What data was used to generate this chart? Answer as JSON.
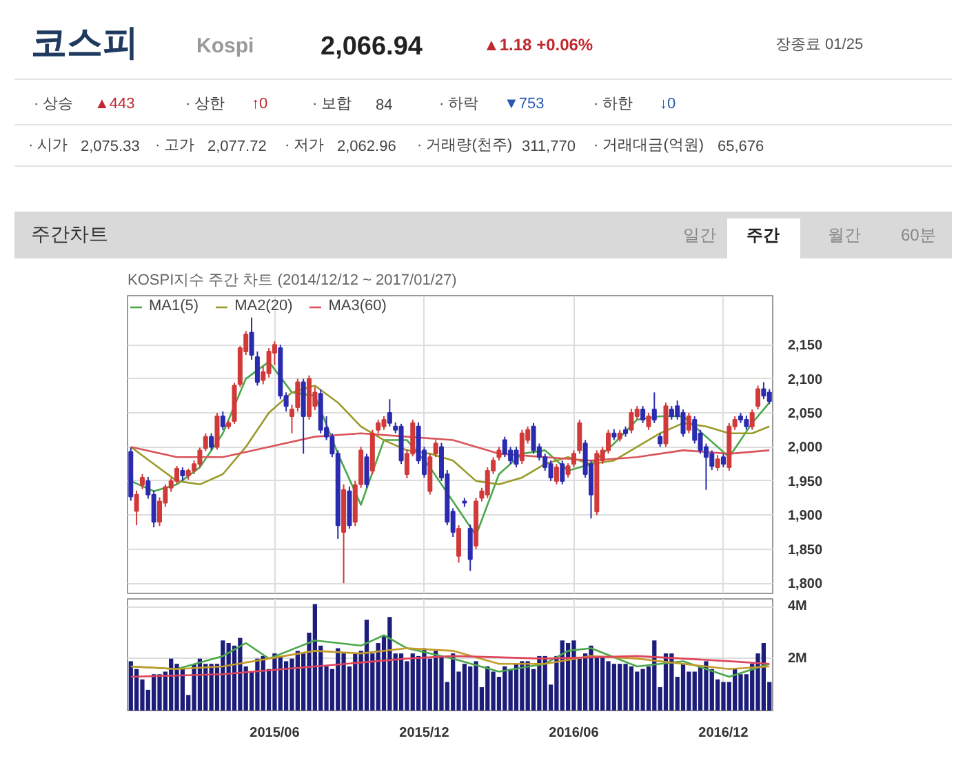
{
  "chart_data": [
    {
      "type": "other",
      "title": "코스피",
      "subtitle": "Kospi",
      "annotations": [
        "2,066.94",
        "▲1.18 +0.06%",
        "장종료 01/25",
        "· 상승",
        "▲443",
        "· 상한",
        "↑0",
        "· 보합",
        "84",
        "· 하락",
        "▼753",
        "· 하한",
        "↓0",
        "· 시가",
        "2,075.33",
        "· 고가",
        "2,077.72",
        "· 저가",
        "2,062.96",
        "· 거래량(천주)",
        "311,770",
        "· 거래대금(억원)",
        "65,676",
        "주간차트",
        "일간",
        "주간",
        "월간",
        "60분"
      ]
    },
    {
      "type": "candlestick",
      "title": "KOSPI지수 주간 차트 (2014/12/12 ~ 2017/01/27)",
      "tick_labels": "y",
      "grid": true,
      "legend": "top left",
      "xlim": [
        "2014-12-08",
        "2017-01-31"
      ],
      "xticks": [
        {
          "value": "2015-06-05",
          "label": null
        },
        {
          "value": "2015-12-04",
          "label": null
        },
        {
          "value": "2016-06-03",
          "label": null
        },
        {
          "value": "2016-12-02",
          "label": null
        }
      ],
      "ylim": [
        1785,
        2222
      ],
      "yticks": [
        {
          "value": 1800,
          "label": "1,800"
        },
        {
          "value": 1850,
          "label": "1,850"
        },
        {
          "value": 1900,
          "label": "1,900"
        },
        {
          "value": 1950,
          "label": "1,950"
        },
        {
          "value": 2000,
          "label": "2,000"
        },
        {
          "value": 2050,
          "label": "2,050"
        },
        {
          "value": 2100,
          "label": "2,100"
        },
        {
          "value": 2150,
          "label": "2,150"
        }
      ],
      "x": [
        "2014-12-12",
        "2014-12-19",
        "2014-12-26",
        "2015-01-02",
        "2015-01-09",
        "2015-01-16",
        "2015-01-23",
        "2015-01-30",
        "2015-02-06",
        "2015-02-13",
        "2015-02-20",
        "2015-02-27",
        "2015-03-06",
        "2015-03-13",
        "2015-03-20",
        "2015-03-27",
        "2015-04-03",
        "2015-04-10",
        "2015-04-17",
        "2015-04-24",
        "2015-05-01",
        "2015-05-08",
        "2015-05-15",
        "2015-05-22",
        "2015-05-29",
        "2015-06-05",
        "2015-06-12",
        "2015-06-19",
        "2015-06-26",
        "2015-07-03",
        "2015-07-10",
        "2015-07-17",
        "2015-07-24",
        "2015-07-31",
        "2015-08-07",
        "2015-08-14",
        "2015-08-21",
        "2015-08-28",
        "2015-09-04",
        "2015-09-11",
        "2015-09-18",
        "2015-09-25",
        "2015-10-02",
        "2015-10-09",
        "2015-10-16",
        "2015-10-23",
        "2015-10-30",
        "2015-11-06",
        "2015-11-13",
        "2015-11-20",
        "2015-11-27",
        "2015-12-04",
        "2015-12-11",
        "2015-12-18",
        "2015-12-25",
        "2016-01-01",
        "2016-01-08",
        "2016-01-15",
        "2016-01-22",
        "2016-01-29",
        "2016-02-05",
        "2016-02-12",
        "2016-02-19",
        "2016-02-26",
        "2016-03-04",
        "2016-03-11",
        "2016-03-18",
        "2016-03-25",
        "2016-04-01",
        "2016-04-08",
        "2016-04-15",
        "2016-04-22",
        "2016-04-29",
        "2016-05-06",
        "2016-05-13",
        "2016-05-20",
        "2016-05-27",
        "2016-06-03",
        "2016-06-10",
        "2016-06-17",
        "2016-06-24",
        "2016-07-01",
        "2016-07-08",
        "2016-07-15",
        "2016-07-22",
        "2016-07-29",
        "2016-08-05",
        "2016-08-12",
        "2016-08-19",
        "2016-08-26",
        "2016-09-02",
        "2016-09-09",
        "2016-09-16",
        "2016-09-23",
        "2016-09-30",
        "2016-10-07",
        "2016-10-14",
        "2016-10-21",
        "2016-10-28",
        "2016-11-04",
        "2016-11-11",
        "2016-11-18",
        "2016-11-25",
        "2016-12-02",
        "2016-12-09",
        "2016-12-16",
        "2016-12-23",
        "2016-12-30",
        "2017-01-06",
        "2017-01-13",
        "2017-01-20",
        "2017-01-27"
      ],
      "ohlc": [
        [
          1993,
          1999,
          1921,
          1927
        ],
        [
          1906,
          1936,
          1885,
          1930
        ],
        [
          1944,
          1960,
          1938,
          1955
        ],
        [
          1950,
          1956,
          1924,
          1930
        ],
        [
          1930,
          1936,
          1882,
          1890
        ],
        [
          1890,
          1926,
          1884,
          1920
        ],
        [
          1918,
          1945,
          1912,
          1941
        ],
        [
          1940,
          1954,
          1934,
          1950
        ],
        [
          1950,
          1972,
          1946,
          1968
        ],
        [
          1965,
          1970,
          1950,
          1958
        ],
        [
          1958,
          1968,
          1952,
          1965
        ],
        [
          1965,
          1980,
          1960,
          1975
        ],
        [
          1975,
          1999,
          1970,
          1995
        ],
        [
          1998,
          2020,
          1994,
          2015
        ],
        [
          2015,
          2020,
          1995,
          2000
        ],
        [
          2000,
          2050,
          1996,
          2045
        ],
        [
          2045,
          2052,
          2025,
          2030
        ],
        [
          2030,
          2038,
          2026,
          2035
        ],
        [
          2038,
          2094,
          2034,
          2090
        ],
        [
          2092,
          2148,
          2088,
          2145
        ],
        [
          2140,
          2170,
          2135,
          2165
        ],
        [
          2168,
          2190,
          2128,
          2135
        ],
        [
          2132,
          2140,
          2090,
          2095
        ],
        [
          2098,
          2118,
          2092,
          2110
        ],
        [
          2108,
          2145,
          2102,
          2140
        ],
        [
          2138,
          2155,
          2120,
          2150
        ],
        [
          2145,
          2150,
          2070,
          2075
        ],
        [
          2075,
          2080,
          2052,
          2060
        ],
        [
          2045,
          2062,
          2020,
          2055
        ],
        [
          2058,
          2100,
          2052,
          2095
        ],
        [
          2095,
          2100,
          1990,
          2045
        ],
        [
          2045,
          2105,
          2040,
          2100
        ],
        [
          2060,
          2088,
          2054,
          2080
        ],
        [
          2078,
          2084,
          2020,
          2025
        ],
        [
          2028,
          2045,
          2010,
          2015
        ],
        [
          2015,
          2020,
          1985,
          1990
        ],
        [
          1990,
          1995,
          1865,
          1885
        ],
        [
          1875,
          1945,
          1800,
          1937
        ],
        [
          1935,
          1942,
          1880,
          1885
        ],
        [
          1890,
          1950,
          1884,
          1944
        ],
        [
          1945,
          2000,
          1940,
          1995
        ],
        [
          1985,
          1990,
          1940,
          1945
        ],
        [
          1965,
          2025,
          1960,
          2020
        ],
        [
          2025,
          2040,
          2020,
          2035
        ],
        [
          2030,
          2045,
          2025,
          2040
        ],
        [
          2050,
          2070,
          2030,
          2035
        ],
        [
          2030,
          2036,
          2020,
          2025
        ],
        [
          2030,
          2034,
          1975,
          1980
        ],
        [
          1960,
          1996,
          1954,
          1990
        ],
        [
          1990,
          2040,
          1986,
          2035
        ],
        [
          2030,
          2036,
          1975,
          1980
        ],
        [
          1995,
          2000,
          1955,
          1960
        ],
        [
          1935,
          1990,
          1930,
          1985
        ],
        [
          1990,
          2010,
          1985,
          2005
        ],
        [
          2000,
          2006,
          1950,
          1955
        ],
        [
          1960,
          1966,
          1885,
          1890
        ],
        [
          1905,
          1910,
          1868,
          1875
        ],
        [
          1840,
          1885,
          1830,
          1880
        ],
        [
          1920,
          1925,
          1912,
          1918
        ],
        [
          1880,
          1886,
          1818,
          1835
        ],
        [
          1855,
          1925,
          1850,
          1920
        ],
        [
          1925,
          1940,
          1920,
          1935
        ],
        [
          1930,
          1970,
          1925,
          1965
        ],
        [
          1965,
          1985,
          1960,
          1980
        ],
        [
          1985,
          2000,
          1980,
          1995
        ],
        [
          2010,
          2015,
          1985,
          1990
        ],
        [
          1995,
          2000,
          1975,
          1980
        ],
        [
          1995,
          2000,
          1970,
          1975
        ],
        [
          1980,
          2025,
          1975,
          2020
        ],
        [
          2010,
          2030,
          2005,
          2025
        ],
        [
          2030,
          2035,
          1990,
          1995
        ],
        [
          2000,
          2005,
          1980,
          1985
        ],
        [
          1985,
          1990,
          1965,
          1970
        ],
        [
          1975,
          1980,
          1950,
          1955
        ],
        [
          1950,
          1975,
          1945,
          1970
        ],
        [
          1975,
          1980,
          1945,
          1950
        ],
        [
          1960,
          1976,
          1955,
          1972
        ],
        [
          1975,
          1995,
          1970,
          1990
        ],
        [
          1995,
          2040,
          1990,
          2035
        ],
        [
          2005,
          2010,
          1955,
          1960
        ],
        [
          1975,
          1980,
          1895,
          1930
        ],
        [
          1905,
          1995,
          1900,
          1990
        ],
        [
          1980,
          2000,
          1975,
          1995
        ],
        [
          1995,
          2025,
          1990,
          2020
        ],
        [
          2020,
          2026,
          2010,
          2015
        ],
        [
          2012,
          2025,
          2008,
          2020
        ],
        [
          2025,
          2030,
          2015,
          2020
        ],
        [
          2025,
          2056,
          2020,
          2050
        ],
        [
          2045,
          2060,
          2040,
          2055
        ],
        [
          2055,
          2060,
          2035,
          2040
        ],
        [
          2030,
          2050,
          2025,
          2045
        ],
        [
          2055,
          2080,
          2035,
          2040
        ],
        [
          2015,
          2020,
          2000,
          2005
        ],
        [
          2005,
          2065,
          2000,
          2060
        ],
        [
          2055,
          2060,
          2040,
          2045
        ],
        [
          2060,
          2068,
          2040,
          2045
        ],
        [
          2050,
          2055,
          2015,
          2020
        ],
        [
          2025,
          2050,
          2020,
          2045
        ],
        [
          2040,
          2045,
          2005,
          2010
        ],
        [
          2020,
          2025,
          1990,
          1995
        ],
        [
          2000,
          2005,
          1937,
          1985
        ],
        [
          1990,
          1995,
          1966,
          1972
        ],
        [
          1970,
          1988,
          1965,
          1982
        ],
        [
          1985,
          1990,
          1970,
          1975
        ],
        [
          1970,
          2035,
          1965,
          2030
        ],
        [
          2030,
          2045,
          2025,
          2040
        ],
        [
          2045,
          2050,
          2035,
          2040
        ],
        [
          2040,
          2046,
          2025,
          2030
        ],
        [
          2030,
          2055,
          2025,
          2050
        ],
        [
          2060,
          2090,
          2055,
          2085
        ],
        [
          2085,
          2095,
          2070,
          2075
        ],
        [
          2080,
          2085,
          2063,
          2067
        ]
      ],
      "series": [
        {
          "type": "line",
          "name": "MA1(5)",
          "color": "#4aa84a",
          "x": [
            "2014-12-12",
            "2015-01-09",
            "2015-02-06",
            "2015-03-06",
            "2015-04-03",
            "2015-05-01",
            "2015-05-29",
            "2015-06-26",
            "2015-07-24",
            "2015-08-21",
            "2015-09-18",
            "2015-10-16",
            "2015-11-13",
            "2015-12-11",
            "2016-01-08",
            "2016-02-05",
            "2016-03-04",
            "2016-04-01",
            "2016-04-29",
            "2016-05-27",
            "2016-06-24",
            "2016-07-22",
            "2016-08-19",
            "2016-09-16",
            "2016-10-14",
            "2016-11-11",
            "2016-12-09",
            "2017-01-06",
            "2017-01-27"
          ],
          "values": [
            1950,
            1935,
            1945,
            1970,
            2020,
            2100,
            2125,
            2080,
            2075,
            1990,
            1915,
            2010,
            2010,
            1970,
            1920,
            1870,
            1960,
            1990,
            1995,
            1965,
            1975,
            2005,
            2040,
            2045,
            2045,
            2015,
            1985,
            2035,
            2065
          ]
        },
        {
          "type": "line",
          "name": "MA2(20)",
          "color": "#9a9a2a",
          "x": [
            "2014-12-12",
            "2015-01-09",
            "2015-02-06",
            "2015-03-06",
            "2015-04-03",
            "2015-05-01",
            "2015-05-29",
            "2015-06-26",
            "2015-07-24",
            "2015-08-21",
            "2015-09-18",
            "2015-10-16",
            "2015-11-13",
            "2015-12-11",
            "2016-01-08",
            "2016-02-05",
            "2016-03-04",
            "2016-04-01",
            "2016-04-29",
            "2016-05-27",
            "2016-06-24",
            "2016-07-22",
            "2016-08-19",
            "2016-09-16",
            "2016-10-14",
            "2016-11-11",
            "2016-12-09",
            "2017-01-06",
            "2017-01-27"
          ],
          "values": [
            2000,
            1975,
            1950,
            1945,
            1960,
            2000,
            2050,
            2080,
            2090,
            2065,
            2030,
            2010,
            1995,
            1990,
            1980,
            1950,
            1945,
            1955,
            1975,
            1985,
            1975,
            1980,
            2000,
            2020,
            2035,
            2030,
            2020,
            2020,
            2030
          ]
        },
        {
          "type": "line",
          "name": "MA3(60)",
          "color": "#d9545a",
          "x": [
            "2014-12-12",
            "2015-02-06",
            "2015-04-03",
            "2015-05-29",
            "2015-07-24",
            "2015-09-18",
            "2015-11-13",
            "2016-01-08",
            "2016-03-04",
            "2016-04-29",
            "2016-06-24",
            "2016-08-19",
            "2016-10-14",
            "2016-12-09",
            "2017-01-27"
          ],
          "values": [
            2000,
            1985,
            1985,
            2000,
            2015,
            2020,
            2015,
            2010,
            1990,
            1985,
            1980,
            1985,
            1995,
            1990,
            1995
          ]
        }
      ]
    },
    {
      "type": "bar",
      "color": "#1c1c7a",
      "tick_labels": true,
      "grid": true,
      "xlim": [
        "2014-12-08",
        "2017-01-31"
      ],
      "xticks": [
        {
          "value": "2015-06-05",
          "label": "2015/06"
        },
        {
          "value": "2015-12-04",
          "label": "2015/12"
        },
        {
          "value": "2016-06-03",
          "label": "2016/06"
        },
        {
          "value": "2016-12-02",
          "label": "2016/12"
        }
      ],
      "ylim": [
        0,
        4.3
      ],
      "yticks": [
        {
          "value": 2,
          "label": "2M"
        },
        {
          "value": 4,
          "label": "4M"
        }
      ],
      "x": [
        "2014-12-12",
        "2014-12-19",
        "2014-12-26",
        "2015-01-02",
        "2015-01-09",
        "2015-01-16",
        "2015-01-23",
        "2015-01-30",
        "2015-02-06",
        "2015-02-13",
        "2015-02-20",
        "2015-02-27",
        "2015-03-06",
        "2015-03-13",
        "2015-03-20",
        "2015-03-27",
        "2015-04-03",
        "2015-04-10",
        "2015-04-17",
        "2015-04-24",
        "2015-05-01",
        "2015-05-08",
        "2015-05-15",
        "2015-05-22",
        "2015-05-29",
        "2015-06-05",
        "2015-06-12",
        "2015-06-19",
        "2015-06-26",
        "2015-07-03",
        "2015-07-10",
        "2015-07-17",
        "2015-07-24",
        "2015-07-31",
        "2015-08-07",
        "2015-08-14",
        "2015-08-21",
        "2015-08-28",
        "2015-09-04",
        "2015-09-11",
        "2015-09-18",
        "2015-09-25",
        "2015-10-02",
        "2015-10-09",
        "2015-10-16",
        "2015-10-23",
        "2015-10-30",
        "2015-11-06",
        "2015-11-13",
        "2015-11-20",
        "2015-11-27",
        "2015-12-04",
        "2015-12-11",
        "2015-12-18",
        "2015-12-25",
        "2016-01-01",
        "2016-01-08",
        "2016-01-15",
        "2016-01-22",
        "2016-01-29",
        "2016-02-05",
        "2016-02-12",
        "2016-02-19",
        "2016-02-26",
        "2016-03-04",
        "2016-03-11",
        "2016-03-18",
        "2016-03-25",
        "2016-04-01",
        "2016-04-08",
        "2016-04-15",
        "2016-04-22",
        "2016-04-29",
        "2016-05-06",
        "2016-05-13",
        "2016-05-20",
        "2016-05-27",
        "2016-06-03",
        "2016-06-10",
        "2016-06-17",
        "2016-06-24",
        "2016-07-01",
        "2016-07-08",
        "2016-07-15",
        "2016-07-22",
        "2016-07-29",
        "2016-08-05",
        "2016-08-12",
        "2016-08-19",
        "2016-08-26",
        "2016-09-02",
        "2016-09-09",
        "2016-09-16",
        "2016-09-23",
        "2016-09-30",
        "2016-10-07",
        "2016-10-14",
        "2016-10-21",
        "2016-10-28",
        "2016-11-04",
        "2016-11-11",
        "2016-11-18",
        "2016-11-25",
        "2016-12-02",
        "2016-12-09",
        "2016-12-16",
        "2016-12-23",
        "2016-12-30",
        "2017-01-06",
        "2017-01-13",
        "2017-01-20",
        "2017-01-27"
      ],
      "values": [
        1.9,
        1.6,
        1.2,
        0.8,
        1.4,
        1.4,
        1.5,
        2.0,
        1.8,
        1.6,
        0.6,
        1.8,
        2.0,
        1.8,
        1.8,
        1.8,
        2.7,
        2.6,
        2.5,
        2.8,
        1.7,
        1.5,
        2.0,
        2.1,
        1.6,
        2.2,
        2.1,
        1.9,
        2.0,
        2.3,
        2.2,
        3.0,
        4.1,
        2.5,
        1.7,
        1.6,
        2.4,
        2.2,
        1.7,
        2.2,
        2.3,
        3.5,
        2.2,
        2.6,
        2.9,
        3.6,
        2.2,
        2.2,
        1.9,
        2.2,
        2.1,
        2.4,
        2.0,
        2.3,
        2.1,
        1.1,
        2.2,
        1.5,
        1.8,
        1.7,
        1.9,
        0.9,
        1.7,
        1.5,
        1.3,
        1.7,
        1.6,
        1.8,
        1.9,
        1.9,
        1.6,
        2.1,
        2.1,
        1.0,
        2.1,
        2.7,
        2.6,
        2.7,
        2.0,
        2.2,
        2.5,
        2.1,
        2.1,
        1.9,
        1.8,
        1.8,
        1.8,
        1.7,
        1.5,
        1.6,
        1.7,
        2.7,
        0.9,
        2.2,
        2.2,
        1.3,
        1.8,
        1.5,
        1.5,
        1.7,
        1.9,
        1.6,
        1.2,
        1.1,
        1.1,
        1.6,
        1.4,
        1.4,
        1.8,
        2.2,
        2.6,
        1.1
      ],
      "series": [
        {
          "type": "line",
          "color": "#4aa84a",
          "x": [
            "2014-12-12",
            "2015-02-06",
            "2015-04-03",
            "2015-05-01",
            "2015-05-29",
            "2015-07-24",
            "2015-09-18",
            "2015-10-16",
            "2015-11-13",
            "2016-01-08",
            "2016-03-04",
            "2016-04-29",
            "2016-05-27",
            "2016-06-24",
            "2016-08-19",
            "2016-10-14",
            "2016-12-09",
            "2017-01-27"
          ],
          "values": [
            1.7,
            1.6,
            2.1,
            2.6,
            2.0,
            2.7,
            2.5,
            2.9,
            2.4,
            2.0,
            1.5,
            1.8,
            2.3,
            2.4,
            1.7,
            1.9,
            1.3,
            1.8
          ]
        },
        {
          "type": "line",
          "color": "#c49a2a",
          "x": [
            "2014-12-12",
            "2015-02-06",
            "2015-04-03",
            "2015-05-29",
            "2015-07-24",
            "2015-09-18",
            "2015-11-13",
            "2016-01-08",
            "2016-03-04",
            "2016-04-29",
            "2016-06-24",
            "2016-08-19",
            "2016-10-14",
            "2016-12-09",
            "2017-01-27"
          ],
          "values": [
            1.7,
            1.6,
            1.7,
            2.0,
            2.3,
            2.2,
            2.4,
            2.3,
            1.8,
            1.8,
            2.1,
            2.0,
            1.8,
            1.6,
            1.7
          ]
        },
        {
          "type": "line",
          "color": "#e0455a",
          "x": [
            "2014-12-12",
            "2015-04-03",
            "2015-07-24",
            "2015-11-13",
            "2016-01-08",
            "2016-04-29",
            "2016-08-19",
            "2016-12-09",
            "2017-01-27"
          ],
          "values": [
            1.3,
            1.4,
            1.7,
            2.0,
            2.1,
            2.0,
            2.1,
            1.9,
            1.8
          ]
        }
      ]
    }
  ]
}
